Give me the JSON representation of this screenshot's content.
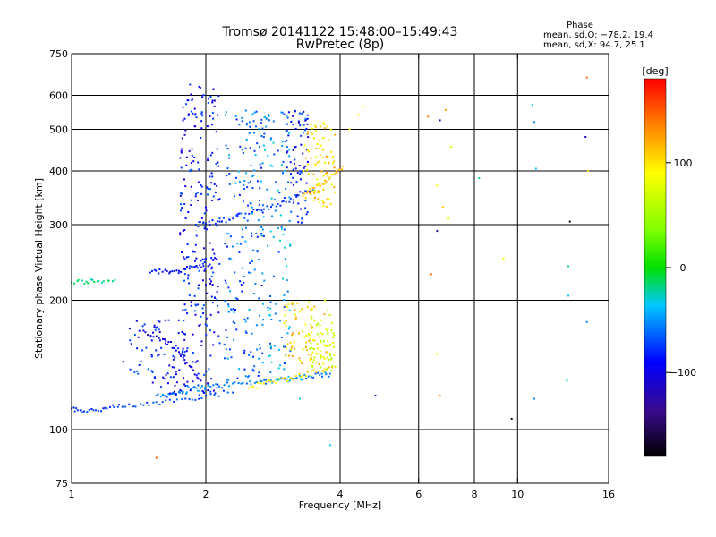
{
  "chart_data": {
    "type": "scatter",
    "title": "Tromsø 20141122 15:48:00–15:49:43",
    "subtitle": "RwPretec (8p)",
    "xlabel": "Frequency [MHz]",
    "ylabel": "Stationary phase Virtual Height [km]",
    "x_scale": "log",
    "y_scale": "log",
    "xlim": [
      1,
      16
    ],
    "ylim": [
      75,
      750
    ],
    "x_ticks": [
      1,
      2,
      4,
      6,
      8,
      10,
      16
    ],
    "x_tick_labels": [
      "1",
      "2",
      "4",
      "6",
      "8",
      "10",
      "16"
    ],
    "x_gridlines": [
      2,
      4,
      6,
      8,
      10
    ],
    "y_ticks": [
      75,
      100,
      200,
      300,
      400,
      500,
      600,
      750
    ],
    "y_tick_labels": [
      "75",
      "100",
      "200",
      "300",
      "400",
      "500",
      "600",
      "750"
    ],
    "y_gridlines": [
      100,
      200,
      300,
      400,
      500,
      600
    ],
    "grid": true,
    "stats": {
      "heading": "Phase",
      "line_o": "mean, sd,O: −78.2, 19.4",
      "line_x": "mean, sd,X:  94.7, 25.1"
    },
    "colorbar": {
      "unit_label": "[deg]",
      "min": -180,
      "max": 180,
      "ticks": [
        100,
        0,
        -100
      ],
      "tick_labels": [
        "100",
        "0",
        "−100"
      ],
      "colormap": "rainbow"
    },
    "traces": [
      {
        "x": [
          1.0,
          1.08,
          1.15,
          1.25
        ],
        "y": [
          220,
          221,
          222,
          223
        ],
        "phase": -20
      },
      {
        "x": [
          1.0,
          1.05,
          1.12,
          1.2,
          1.3,
          1.45,
          1.6,
          1.8,
          2.0,
          2.3
        ],
        "y": [
          112,
          111,
          111,
          112,
          113,
          114,
          116,
          118,
          120,
          122
        ],
        "phase": -80
      },
      {
        "x": [
          1.55,
          1.65,
          1.75,
          1.85,
          1.95,
          2.05,
          2.2,
          2.4,
          2.6,
          2.8,
          3.0,
          3.2,
          3.4,
          3.6,
          3.8
        ],
        "y": [
          120,
          121,
          122,
          124,
          125,
          126,
          127,
          128,
          129,
          130,
          131,
          132,
          133,
          134,
          135
        ],
        "phase": -60
      },
      {
        "x": [
          1.45,
          1.55,
          1.65,
          1.75,
          1.85,
          1.95
        ],
        "y": [
          170,
          165,
          160,
          150,
          140,
          130
        ],
        "phase": -110
      },
      {
        "x": [
          1.5,
          1.6,
          1.7,
          1.8,
          1.9,
          2.0
        ],
        "y": [
          232,
          233,
          234,
          236,
          240,
          250
        ],
        "phase": -95
      },
      {
        "x": [
          1.9,
          2.0,
          2.15,
          2.3,
          2.5,
          2.7,
          2.9,
          3.1,
          3.3,
          3.5
        ],
        "y": [
          300,
          302,
          305,
          310,
          318,
          326,
          335,
          345,
          355,
          365
        ],
        "phase": -85
      },
      {
        "x": [
          3.3,
          3.5,
          3.7,
          3.9,
          4.05
        ],
        "y": [
          350,
          365,
          380,
          395,
          410
        ],
        "phase": 120
      },
      {
        "x": [
          2.5,
          2.7,
          2.9,
          3.1,
          3.3,
          3.6,
          3.9
        ],
        "y": [
          125,
          128,
          130,
          132,
          134,
          137,
          140
        ],
        "phase": 110
      }
    ],
    "clusters": [
      {
        "x_range": [
          1.75,
          2.15
        ],
        "y_range": [
          120,
          640
        ],
        "phase": -95,
        "count": 260
      },
      {
        "x_range": [
          2.2,
          2.7
        ],
        "y_range": [
          130,
          560
        ],
        "phase": -70,
        "count": 180
      },
      {
        "x_range": [
          2.65,
          3.1
        ],
        "y_range": [
          130,
          560
        ],
        "phase": -55,
        "count": 120
      },
      {
        "x_range": [
          3.0,
          3.4
        ],
        "y_range": [
          300,
          560
        ],
        "phase": -90,
        "count": 80
      },
      {
        "x_range": [
          3.3,
          3.9
        ],
        "y_range": [
          330,
          520
        ],
        "phase": 110,
        "count": 90
      },
      {
        "x_range": [
          3.0,
          3.8
        ],
        "y_range": [
          140,
          200
        ],
        "phase": 110,
        "count": 80
      },
      {
        "x_range": [
          3.4,
          3.9
        ],
        "y_range": [
          135,
          185
        ],
        "phase": 70,
        "count": 60
      },
      {
        "x_range": [
          1.5,
          1.8
        ],
        "y_range": [
          120,
          180
        ],
        "phase": -100,
        "count": 60
      },
      {
        "x_range": [
          1.3,
          1.55
        ],
        "y_range": [
          130,
          180
        ],
        "phase": -90,
        "count": 25
      }
    ],
    "sparse_points": [
      {
        "x": 4.2,
        "y": 500,
        "phase": 100
      },
      {
        "x": 4.4,
        "y": 540,
        "phase": 110
      },
      {
        "x": 4.5,
        "y": 565,
        "phase": 95
      },
      {
        "x": 6.3,
        "y": 535,
        "phase": 140
      },
      {
        "x": 6.7,
        "y": 525,
        "phase": -120
      },
      {
        "x": 6.9,
        "y": 555,
        "phase": 130
      },
      {
        "x": 6.6,
        "y": 370,
        "phase": 100
      },
      {
        "x": 7.1,
        "y": 455,
        "phase": 80
      },
      {
        "x": 6.8,
        "y": 330,
        "phase": 120
      },
      {
        "x": 6.6,
        "y": 290,
        "phase": -140
      },
      {
        "x": 7.0,
        "y": 310,
        "phase": 90
      },
      {
        "x": 6.4,
        "y": 230,
        "phase": 150
      },
      {
        "x": 6.7,
        "y": 120,
        "phase": 140
      },
      {
        "x": 6.6,
        "y": 150,
        "phase": 80
      },
      {
        "x": 8.2,
        "y": 385,
        "phase": -20
      },
      {
        "x": 9.3,
        "y": 250,
        "phase": 100
      },
      {
        "x": 9.7,
        "y": 106,
        "phase": -170
      },
      {
        "x": 10.8,
        "y": 570,
        "phase": -40
      },
      {
        "x": 10.9,
        "y": 520,
        "phase": -60
      },
      {
        "x": 11.0,
        "y": 405,
        "phase": -40
      },
      {
        "x": 10.9,
        "y": 118,
        "phase": -60
      },
      {
        "x": 13.1,
        "y": 305,
        "phase": -170
      },
      {
        "x": 13.0,
        "y": 240,
        "phase": -20
      },
      {
        "x": 13.0,
        "y": 205,
        "phase": -40
      },
      {
        "x": 12.9,
        "y": 130,
        "phase": -30
      },
      {
        "x": 14.3,
        "y": 660,
        "phase": 150
      },
      {
        "x": 14.2,
        "y": 480,
        "phase": -120
      },
      {
        "x": 14.4,
        "y": 400,
        "phase": 110
      },
      {
        "x": 14.3,
        "y": 178,
        "phase": -60
      },
      {
        "x": 4.8,
        "y": 120,
        "phase": -90
      },
      {
        "x": 3.8,
        "y": 92,
        "phase": -40
      },
      {
        "x": 1.55,
        "y": 86,
        "phase": 150
      },
      {
        "x": 3.25,
        "y": 118,
        "phase": -30
      }
    ]
  }
}
